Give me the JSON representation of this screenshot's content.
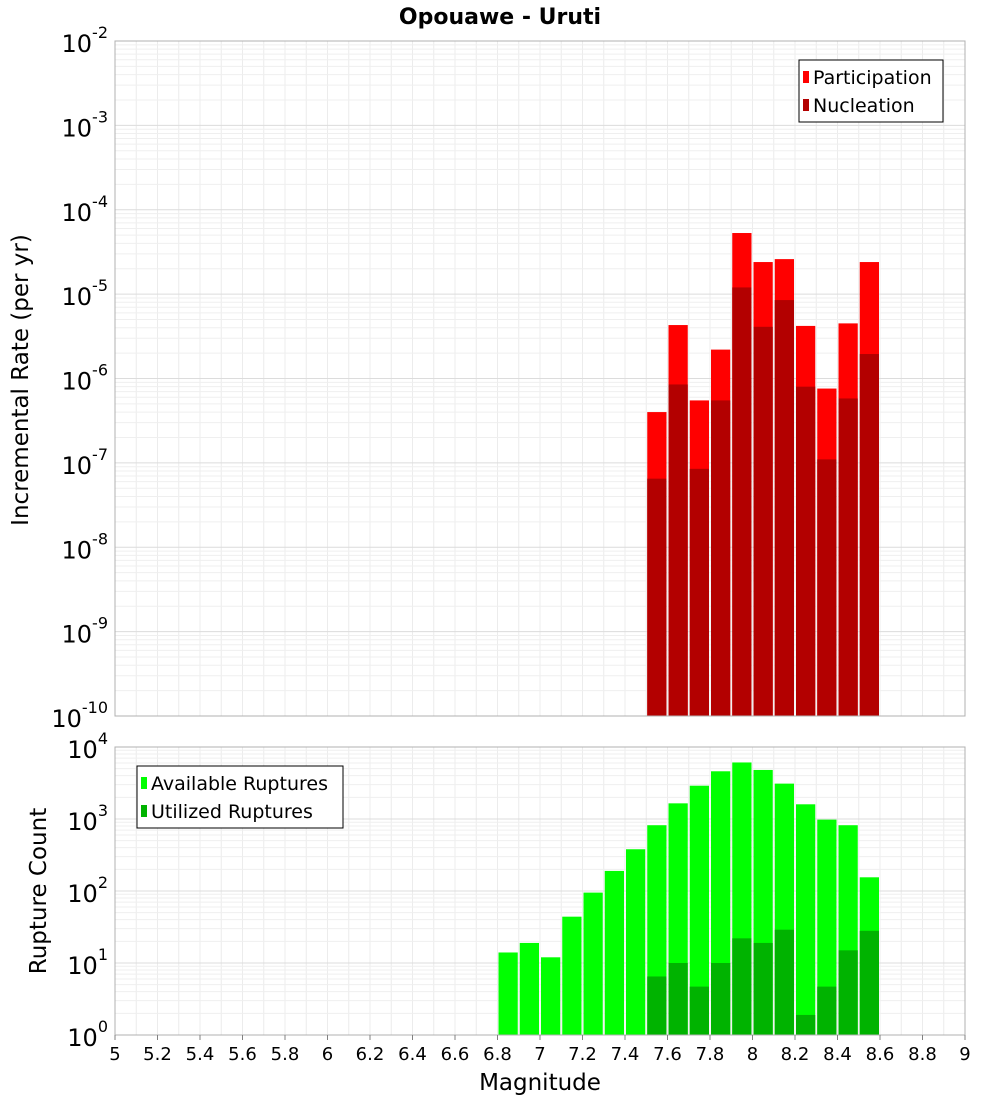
{
  "chart_data": [
    {
      "type": "bar",
      "title": "Opouawe - Uruti",
      "xlabel": "",
      "ylabel": "Incremental Rate (per yr)",
      "yscale": "log",
      "xlim": [
        5,
        9
      ],
      "ylim": [
        1e-10,
        0.01
      ],
      "y_tick_labels": [
        "10^-10",
        "10^-9",
        "10^-8",
        "10^-7",
        "10^-6",
        "10^-5",
        "10^-4",
        "10^-3",
        "10^-2"
      ],
      "legend_position": "top-right",
      "grid": true,
      "bar_width": 0.1,
      "x": [
        7.55,
        7.65,
        7.75,
        7.85,
        7.95,
        8.05,
        8.15,
        8.25,
        8.35,
        8.45,
        8.55
      ],
      "series": [
        {
          "name": "Participation",
          "color": "#ff0000",
          "values": [
            4e-07,
            4.3e-06,
            5.5e-07,
            2.2e-06,
            5.3e-05,
            2.4e-05,
            2.6e-05,
            4.2e-06,
            7.6e-07,
            4.5e-06,
            2.4e-05
          ]
        },
        {
          "name": "Nucleation",
          "color": "#b30000",
          "values": [
            6.5e-08,
            8.5e-07,
            8.5e-08,
            5.5e-07,
            1.2e-05,
            4.1e-06,
            8.5e-06,
            8e-07,
            1.1e-07,
            5.8e-07,
            1.95e-06
          ]
        }
      ]
    },
    {
      "type": "bar",
      "xlabel": "Magnitude",
      "ylabel": "Rupture Count",
      "yscale": "log",
      "xlim": [
        5,
        9
      ],
      "ylim": [
        1,
        10000
      ],
      "y_tick_labels": [
        "10^0",
        "10^1",
        "10^2",
        "10^3",
        "10^4"
      ],
      "x_tick_labels": [
        "5",
        "5.2",
        "5.4",
        "5.6",
        "5.8",
        "6",
        "6.2",
        "6.4",
        "6.6",
        "6.8",
        "7",
        "7.2",
        "7.4",
        "7.6",
        "7.8",
        "8",
        "8.2",
        "8.4",
        "8.6",
        "8.8",
        "9"
      ],
      "legend_position": "top-left",
      "grid": true,
      "bar_width": 0.1,
      "x": [
        6.85,
        6.95,
        7.05,
        7.15,
        7.25,
        7.35,
        7.45,
        7.55,
        7.65,
        7.75,
        7.85,
        7.95,
        8.05,
        8.15,
        8.25,
        8.35,
        8.45,
        8.55
      ],
      "series": [
        {
          "name": "Available Ruptures",
          "color": "#00ff00",
          "values": [
            14,
            19,
            12,
            44,
            95,
            190,
            380,
            820,
            1650,
            2900,
            4600,
            6100,
            4800,
            3100,
            1600,
            980,
            820,
            155
          ]
        },
        {
          "name": "Utilized Ruptures",
          "color": "#00b300",
          "values": [
            null,
            null,
            null,
            null,
            null,
            null,
            null,
            6.5,
            10,
            4.7,
            10,
            22,
            19,
            29,
            1.9,
            4.7,
            15,
            28
          ]
        }
      ]
    }
  ]
}
